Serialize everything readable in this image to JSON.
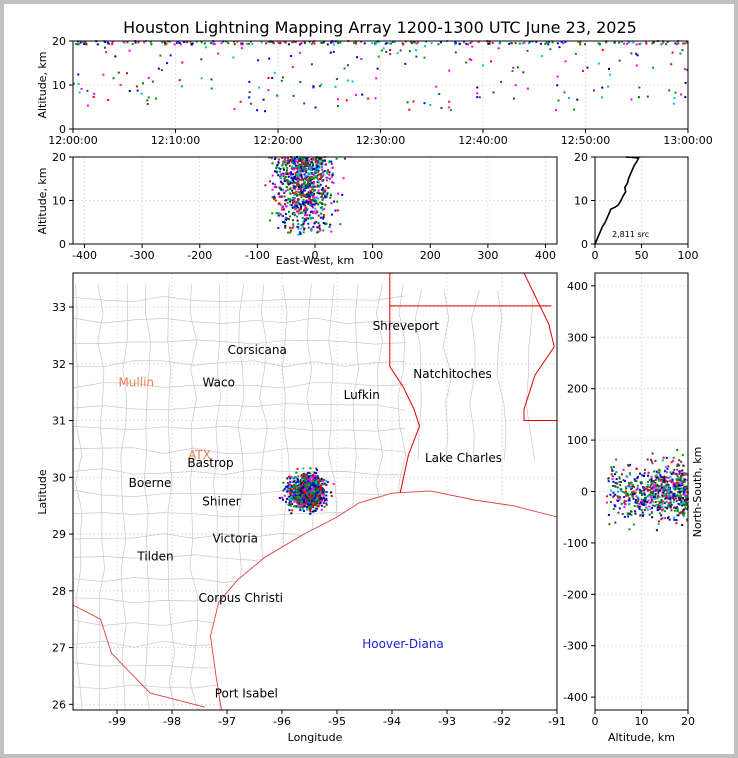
{
  "title": "Houston Lightning Mapping Array 1200-1300 UTC June 23, 2025",
  "colors": {
    "background": "#c0c0c0",
    "county_lines": "#c8c8c8",
    "state_lines": "#e00000",
    "coast": "#e04040",
    "source_count_profile": "#000000"
  },
  "chart_data": [
    {
      "type": "scatter",
      "panel": "altitude-vs-time",
      "xlabel": "",
      "ylabel": "Altitude, km",
      "x_tick_labels": [
        "12:00:00",
        "12:10:00",
        "12:20:00",
        "12:30:00",
        "12:40:00",
        "12:50:00",
        "13:00:00"
      ],
      "xlim_minutes": [
        0,
        60
      ],
      "y_ticks": [
        0,
        10,
        20
      ],
      "ylim": [
        0,
        20
      ],
      "grid": true,
      "points_note": "sparse sources at 5-20 km across the hour, densest at 19-20 km"
    },
    {
      "type": "scatter",
      "panel": "altitude-vs-east-west",
      "xlabel": "East-West, km",
      "ylabel": "Altitude, km",
      "x_ticks": [
        -400,
        -300,
        -200,
        -100,
        0,
        100,
        200,
        300,
        400
      ],
      "xlim": [
        -420,
        420
      ],
      "y_ticks": [
        0,
        10,
        20
      ],
      "ylim": [
        0,
        20
      ],
      "grid": true,
      "cluster": {
        "x_center": -20,
        "x_spread": 35,
        "z_range": [
          2,
          20
        ]
      }
    },
    {
      "type": "line",
      "panel": "source-count-histogram",
      "annotation": "2,811 src",
      "x_ticks": [
        0,
        50,
        100
      ],
      "xlim": [
        0,
        100
      ],
      "y_ticks": [
        0,
        10,
        20
      ],
      "ylim": [
        0,
        20
      ],
      "profile": [
        [
          0,
          0
        ],
        [
          2,
          1
        ],
        [
          4,
          2
        ],
        [
          6,
          3
        ],
        [
          8,
          4
        ],
        [
          11,
          5
        ],
        [
          13,
          6
        ],
        [
          15,
          7
        ],
        [
          17,
          8
        ],
        [
          22,
          8.5
        ],
        [
          25,
          9
        ],
        [
          28,
          10
        ],
        [
          30,
          11
        ],
        [
          33,
          12
        ],
        [
          32,
          13
        ],
        [
          35,
          14
        ],
        [
          36,
          15
        ],
        [
          38,
          16
        ],
        [
          40,
          17
        ],
        [
          42,
          18
        ],
        [
          45,
          19
        ],
        [
          47,
          19.8
        ],
        [
          33,
          20
        ]
      ]
    },
    {
      "type": "scatter",
      "panel": "plan-view-map",
      "xlabel": "Longitude",
      "ylabel": "Latitude",
      "x_ticks": [
        -99,
        -98,
        -97,
        -96,
        -95,
        -94,
        -93,
        -92,
        -91
      ],
      "xlim": [
        -99.8,
        -91
      ],
      "y_ticks": [
        26,
        27,
        28,
        29,
        30,
        31,
        32,
        33
      ],
      "ylim": [
        25.9,
        33.6
      ],
      "grid": true,
      "cluster": {
        "lon_center": -95.55,
        "lat_center": 29.75,
        "lon_spread": 0.32,
        "lat_spread": 0.3
      },
      "places": [
        {
          "name": "Shreveport",
          "lon": -93.75,
          "lat": 32.6,
          "color": "#000000"
        },
        {
          "name": "Corsicana",
          "lon": -96.45,
          "lat": 32.17,
          "color": "#000000"
        },
        {
          "name": "Mullin",
          "lon": -98.65,
          "lat": 31.6,
          "color": "#f08050"
        },
        {
          "name": "Waco",
          "lon": -97.15,
          "lat": 31.6,
          "color": "#000000"
        },
        {
          "name": "Natchitoches",
          "lon": -92.9,
          "lat": 31.75,
          "color": "#000000"
        },
        {
          "name": "Lufkin",
          "lon": -94.55,
          "lat": 31.38,
          "color": "#000000"
        },
        {
          "name": "ATX",
          "lon": -97.5,
          "lat": 30.32,
          "color": "#f08050"
        },
        {
          "name": "Bastrop",
          "lon": -97.3,
          "lat": 30.18,
          "color": "#000000"
        },
        {
          "name": "Lake Charles",
          "lon": -92.7,
          "lat": 30.27,
          "color": "#000000"
        },
        {
          "name": "Boerne",
          "lon": -98.4,
          "lat": 29.83,
          "color": "#000000"
        },
        {
          "name": "Shiner",
          "lon": -97.1,
          "lat": 29.5,
          "color": "#000000"
        },
        {
          "name": "Victoria",
          "lon": -96.85,
          "lat": 28.85,
          "color": "#000000"
        },
        {
          "name": "Tilden",
          "lon": -98.3,
          "lat": 28.53,
          "color": "#000000"
        },
        {
          "name": "Corpus Christi",
          "lon": -96.75,
          "lat": 27.8,
          "color": "#000000"
        },
        {
          "name": "Hoover-Diana",
          "lon": -93.8,
          "lat": 26.99,
          "color": "#2020e0"
        },
        {
          "name": "Port Isabel",
          "lon": -96.65,
          "lat": 26.12,
          "color": "#000000"
        }
      ]
    },
    {
      "type": "scatter",
      "panel": "north-south-vs-altitude",
      "xlabel": "Altitude, km",
      "ylabel": "North-South, km",
      "x_ticks": [
        0,
        10,
        20
      ],
      "xlim": [
        0,
        20
      ],
      "y_ticks": [
        -400,
        -300,
        -200,
        -100,
        0,
        100,
        200,
        300,
        400
      ],
      "ylim": [
        -425,
        425
      ],
      "grid": true,
      "cluster": {
        "y_center": 0,
        "y_spread": 35,
        "z_range": [
          2,
          20
        ]
      }
    }
  ]
}
